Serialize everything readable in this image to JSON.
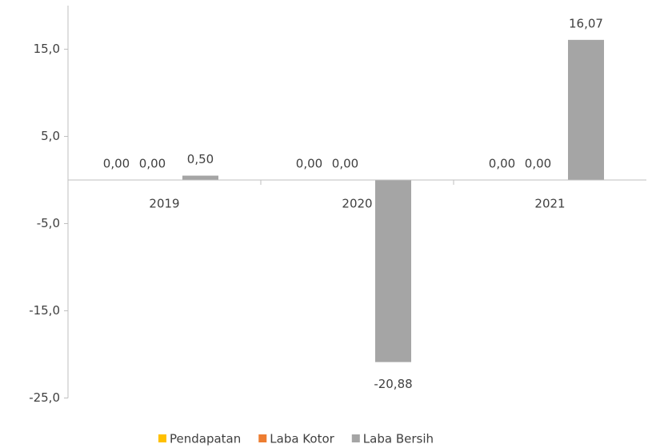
{
  "chart_data": {
    "type": "bar",
    "categories": [
      "2019",
      "2020",
      "2021"
    ],
    "series": [
      {
        "name": "Pendapatan",
        "color": "#ffc000",
        "values": [
          0,
          0,
          0
        ],
        "value_labels": [
          "0,00",
          "0,00",
          "0,00"
        ]
      },
      {
        "name": "Laba Kotor",
        "color": "#ed7d31",
        "values": [
          0,
          0,
          0
        ],
        "value_labels": [
          "0,00",
          "0,00",
          "0,00"
        ]
      },
      {
        "name": "Laba Bersih",
        "color": "#a5a5a5",
        "values": [
          0.5,
          -20.88,
          16.07
        ],
        "value_labels": [
          "0,50",
          "-20,88",
          "16,07"
        ]
      }
    ],
    "ylim": [
      -25,
      20
    ],
    "yticks": [
      {
        "value": -25,
        "label": "-25,0"
      },
      {
        "value": -15,
        "label": "-15,0"
      },
      {
        "value": -5,
        "label": "-5,0"
      },
      {
        "value": 5,
        "label": "5,0"
      },
      {
        "value": 15,
        "label": "15,0"
      }
    ],
    "grid": false,
    "legend": "bottom"
  }
}
